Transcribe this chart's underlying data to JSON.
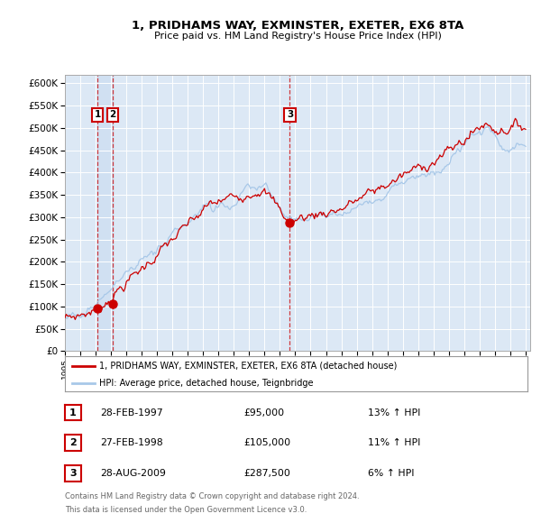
{
  "title": "1, PRIDHAMS WAY, EXMINSTER, EXETER, EX6 8TA",
  "subtitle": "Price paid vs. HM Land Registry's House Price Index (HPI)",
  "legend_label_red": "1, PRIDHAMS WAY, EXMINSTER, EXETER, EX6 8TA (detached house)",
  "legend_label_blue": "HPI: Average price, detached house, Teignbridge",
  "footer_line1": "Contains HM Land Registry data © Crown copyright and database right 2024.",
  "footer_line2": "This data is licensed under the Open Government Licence v3.0.",
  "transactions": [
    {
      "num": 1,
      "date": "28-FEB-1997",
      "price": "£95,000",
      "hpi": "13% ↑ HPI",
      "year": 1997.12
    },
    {
      "num": 2,
      "date": "27-FEB-1998",
      "price": "£105,000",
      "hpi": "11% ↑ HPI",
      "year": 1998.12
    },
    {
      "num": 3,
      "date": "28-AUG-2009",
      "price": "£287,500",
      "hpi": "6% ↑ HPI",
      "year": 2009.65
    }
  ],
  "transaction_values": [
    95000,
    105000,
    287500
  ],
  "ylim": [
    0,
    620000
  ],
  "yticks": [
    0,
    50000,
    100000,
    150000,
    200000,
    250000,
    300000,
    350000,
    400000,
    450000,
    500000,
    550000,
    600000
  ],
  "bg_color": "#dce8f5",
  "red_color": "#cc0000",
  "blue_color": "#a8c8e8",
  "shade_color": "#c8dcf0"
}
